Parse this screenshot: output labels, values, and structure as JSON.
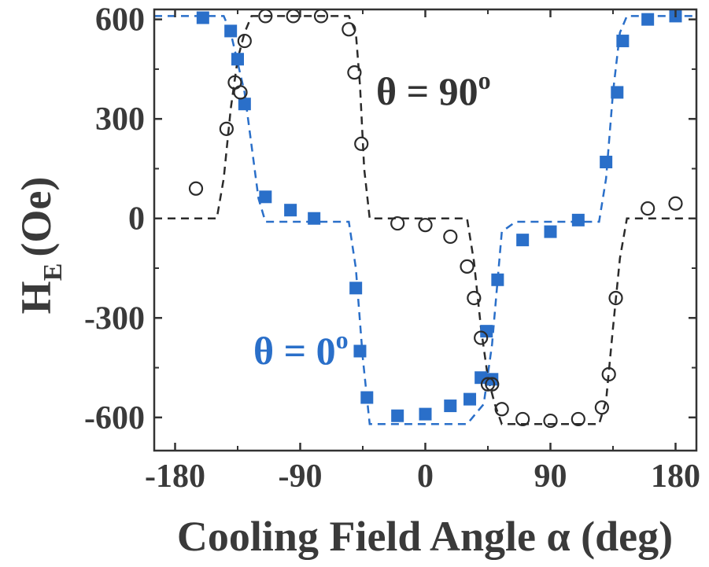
{
  "chart_data": {
    "type": "scatter",
    "xlabel": "Cooling Field Angle α (deg)",
    "ylabel_main": "H",
    "ylabel_sub": "E",
    "ylabel_unit": "(Oe)",
    "xlim": [
      -195,
      195
    ],
    "ylim": [
      -700,
      630
    ],
    "x_ticks": [
      -180,
      -90,
      0,
      90,
      180
    ],
    "y_ticks": [
      -600,
      -300,
      0,
      300,
      600
    ],
    "x_tick_labels": [
      "-180",
      "-90",
      "0",
      "90",
      "180"
    ],
    "y_tick_labels": [
      "-600",
      "-300",
      "0",
      "300",
      "600"
    ],
    "annotations": [
      {
        "text": "θ = 90",
        "sup": "o",
        "color": "#333333"
      },
      {
        "text": "θ = 0",
        "sup": "o",
        "color": "#2a6fc9"
      }
    ],
    "series": [
      {
        "marker": "square",
        "color": "#2a6fc9",
        "x": [
          -160,
          -140,
          -135,
          -130,
          -115,
          -97,
          -80,
          -50,
          -47,
          -42,
          -20,
          0,
          18,
          32,
          40,
          44,
          48,
          52,
          70,
          90,
          110,
          130,
          138,
          142,
          160,
          180
        ],
        "y": [
          605,
          565,
          480,
          345,
          65,
          25,
          0,
          -210,
          -400,
          -540,
          -595,
          -590,
          -565,
          -545,
          -480,
          -340,
          -485,
          -185,
          -65,
          -40,
          -5,
          170,
          380,
          535,
          600,
          610
        ],
        "fit_x": [
          -195,
          -145,
          -140,
          -130,
          -120,
          -115,
          -55,
          -50,
          -45,
          -40,
          30,
          42,
          48,
          55,
          65,
          125,
          130,
          135,
          140,
          145,
          195
        ],
        "fit_y": [
          610,
          610,
          560,
          380,
          60,
          -10,
          -10,
          -150,
          -420,
          -620,
          -620,
          -560,
          -380,
          -40,
          -10,
          -10,
          120,
          380,
          560,
          610,
          610
        ]
      },
      {
        "marker": "circle",
        "color": "#2b2b2b",
        "x": [
          -165,
          -143,
          -137,
          -133,
          -130,
          -115,
          -95,
          -75,
          -55,
          -51,
          -46,
          -20,
          0,
          18,
          30,
          35,
          40,
          45,
          48,
          55,
          70,
          90,
          110,
          127,
          132,
          137,
          160,
          180
        ],
        "y": [
          90,
          270,
          410,
          380,
          535,
          610,
          610,
          610,
          570,
          440,
          225,
          -15,
          -20,
          -55,
          -145,
          -240,
          -360,
          -500,
          -500,
          -575,
          -605,
          -610,
          -605,
          -570,
          -470,
          -240,
          30,
          45
        ],
        "fit_x": [
          -195,
          -150,
          -145,
          -140,
          -135,
          -130,
          -125,
          -55,
          -50,
          -47,
          -44,
          -40,
          30,
          35,
          40,
          45,
          50,
          55,
          125,
          130,
          135,
          140,
          145,
          150,
          195
        ],
        "fit_y": [
          0,
          0,
          120,
          330,
          480,
          560,
          610,
          610,
          560,
          400,
          150,
          0,
          0,
          -130,
          -330,
          -480,
          -560,
          -620,
          -620,
          -550,
          -330,
          -120,
          0,
          0,
          0
        ]
      }
    ]
  }
}
